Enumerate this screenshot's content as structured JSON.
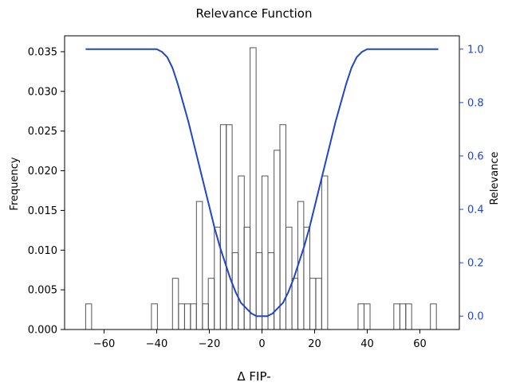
{
  "chart_data": {
    "type": "bar",
    "title": "Relevance Function",
    "xlabel": "Δ FIP-",
    "ylabel": "Frequency",
    "y2label": "Relevance",
    "xlim": [
      -75,
      75
    ],
    "ylim": [
      0,
      0.037
    ],
    "y2lim": [
      -0.05,
      1.05
    ],
    "xticks": [
      -60,
      -40,
      -20,
      0,
      20,
      40,
      60
    ],
    "xtick_labels": [
      "−60",
      "−40",
      "−20",
      "0",
      "20",
      "40",
      "60"
    ],
    "yticks": [
      0.0,
      0.005,
      0.01,
      0.015,
      0.02,
      0.025,
      0.03,
      0.035
    ],
    "ytick_labels": [
      "0.000",
      "0.005",
      "0.010",
      "0.015",
      "0.020",
      "0.025",
      "0.030",
      "0.035"
    ],
    "y2ticks": [
      0.0,
      0.2,
      0.4,
      0.6,
      0.8,
      1.0
    ],
    "y2tick_labels": [
      "0.0",
      "0.2",
      "0.4",
      "0.6",
      "0.8",
      "1.0"
    ],
    "grid": false,
    "histogram": {
      "bin_width": 2.27,
      "bins": [
        {
          "x": -67,
          "value": 0.00323
        },
        {
          "x": -42,
          "value": 0.00323
        },
        {
          "x": -34,
          "value": 0.00645
        },
        {
          "x": -31.7,
          "value": 0.00323
        },
        {
          "x": -29.4,
          "value": 0.00323
        },
        {
          "x": -27.2,
          "value": 0.00323
        },
        {
          "x": -24.9,
          "value": 0.01613
        },
        {
          "x": -22.6,
          "value": 0.00323
        },
        {
          "x": -20.4,
          "value": 0.00645
        },
        {
          "x": -18.1,
          "value": 0.0129
        },
        {
          "x": -15.8,
          "value": 0.0258
        },
        {
          "x": -13.6,
          "value": 0.0258
        },
        {
          "x": -11.3,
          "value": 0.00968
        },
        {
          "x": -9.0,
          "value": 0.01935
        },
        {
          "x": -6.8,
          "value": 0.0129
        },
        {
          "x": -4.5,
          "value": 0.0355
        },
        {
          "x": -2.2,
          "value": 0.00968
        },
        {
          "x": 0.0,
          "value": 0.01935
        },
        {
          "x": 2.3,
          "value": 0.00968
        },
        {
          "x": 4.6,
          "value": 0.02258
        },
        {
          "x": 6.8,
          "value": 0.0258
        },
        {
          "x": 9.1,
          "value": 0.0129
        },
        {
          "x": 11.4,
          "value": 0.00645
        },
        {
          "x": 13.6,
          "value": 0.01613
        },
        {
          "x": 15.9,
          "value": 0.0129
        },
        {
          "x": 18.2,
          "value": 0.00645
        },
        {
          "x": 20.4,
          "value": 0.00645
        },
        {
          "x": 22.7,
          "value": 0.01935
        },
        {
          "x": 36.5,
          "value": 0.00323
        },
        {
          "x": 38.8,
          "value": 0.00323
        },
        {
          "x": 50.1,
          "value": 0.00323
        },
        {
          "x": 52.4,
          "value": 0.00323
        },
        {
          "x": 54.6,
          "value": 0.00323
        },
        {
          "x": 64,
          "value": 0.00323
        }
      ]
    },
    "relevance_curve": {
      "name": "Relevance",
      "x": [
        -67,
        -40,
        -38,
        -36,
        -34,
        -32,
        -30,
        -28,
        -26,
        -24,
        -22,
        -20,
        -18,
        -16,
        -14,
        -12,
        -10,
        -8,
        -6,
        -4,
        -2,
        0,
        2,
        4,
        6,
        8,
        10,
        12,
        14,
        16,
        18,
        20,
        22,
        24,
        26,
        28,
        30,
        32,
        34,
        36,
        38,
        40,
        67
      ],
      "y": [
        1.0,
        1.0,
        0.99,
        0.97,
        0.93,
        0.87,
        0.8,
        0.73,
        0.65,
        0.57,
        0.49,
        0.41,
        0.33,
        0.26,
        0.2,
        0.14,
        0.09,
        0.05,
        0.03,
        0.01,
        0.0,
        0.0,
        0.0,
        0.01,
        0.03,
        0.05,
        0.09,
        0.14,
        0.2,
        0.26,
        0.33,
        0.41,
        0.49,
        0.57,
        0.65,
        0.73,
        0.8,
        0.87,
        0.93,
        0.97,
        0.99,
        1.0,
        1.0
      ]
    },
    "colors": {
      "bar_edge": "#555555",
      "curve": "#1f45c8",
      "right_axis": "#1f45c8",
      "axis": "#000000"
    }
  }
}
